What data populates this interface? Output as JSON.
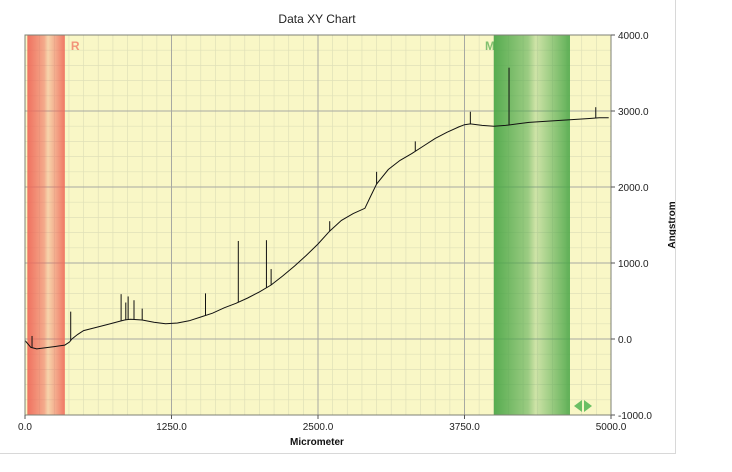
{
  "chart_data": {
    "type": "line",
    "title": "Data XY Chart",
    "xlabel": "Micrometer",
    "ylabel": "Angstrom",
    "xlim": [
      0,
      5000
    ],
    "ylim": [
      -1000,
      4000
    ],
    "x_ticks": [
      "0.0",
      "1250.0",
      "2500.0",
      "3750.0",
      "5000.0"
    ],
    "x_tick_values": [
      0,
      1250,
      2500,
      3750,
      5000
    ],
    "y_ticks": [
      "4000.0",
      "3000.0",
      "2000.0",
      "1000.0",
      "0.0",
      "-1000.0"
    ],
    "y_tick_values": [
      4000,
      3000,
      2000,
      1000,
      0,
      -1000
    ],
    "grid": true,
    "background_color": "#f9f7c6",
    "line_color": "#111111",
    "regions": [
      {
        "label": "R",
        "x_start": 20,
        "x_end": 340,
        "color": "#ef6a5a"
      },
      {
        "label": "M",
        "x_start": 4000,
        "x_end": 4650,
        "color": "#4ea84a"
      }
    ],
    "series": [
      {
        "x": [
          0,
          50,
          100,
          150,
          200,
          250,
          300,
          340,
          380,
          400,
          450,
          500,
          600,
          700,
          800,
          850,
          900,
          1000,
          1100,
          1200,
          1300,
          1400,
          1500,
          1600,
          1700,
          1800,
          1900,
          2000,
          2100,
          2200,
          2300,
          2400,
          2500,
          2600,
          2700,
          2800,
          2900,
          2950,
          3000,
          3100,
          3200,
          3300,
          3400,
          3500,
          3600,
          3700,
          3750,
          3800,
          3900,
          4000,
          4100,
          4200,
          4300,
          4400,
          4500,
          4600,
          4700,
          4800,
          4900,
          4980
        ],
        "y": [
          -20,
          -110,
          -130,
          -120,
          -110,
          -100,
          -90,
          -80,
          -40,
          0,
          60,
          110,
          150,
          190,
          230,
          250,
          260,
          250,
          220,
          200,
          210,
          240,
          290,
          340,
          410,
          470,
          540,
          620,
          710,
          830,
          960,
          1100,
          1250,
          1420,
          1560,
          1650,
          1720,
          1880,
          2040,
          2230,
          2350,
          2440,
          2540,
          2640,
          2720,
          2790,
          2820,
          2830,
          2810,
          2800,
          2810,
          2830,
          2850,
          2860,
          2870,
          2880,
          2890,
          2900,
          2910,
          2910
        ]
      }
    ],
    "spikes": [
      {
        "x": 60,
        "y": 40
      },
      {
        "x": 390,
        "y": 360
      },
      {
        "x": 820,
        "y": 590
      },
      {
        "x": 860,
        "y": 480
      },
      {
        "x": 880,
        "y": 560
      },
      {
        "x": 930,
        "y": 510
      },
      {
        "x": 1000,
        "y": 400
      },
      {
        "x": 1540,
        "y": 600
      },
      {
        "x": 1820,
        "y": 1290
      },
      {
        "x": 2060,
        "y": 1300
      },
      {
        "x": 2100,
        "y": 920
      },
      {
        "x": 2600,
        "y": 1550
      },
      {
        "x": 3000,
        "y": 2200
      },
      {
        "x": 3330,
        "y": 2600
      },
      {
        "x": 3800,
        "y": 2990
      },
      {
        "x": 4130,
        "y": 3570
      },
      {
        "x": 4870,
        "y": 3050
      }
    ],
    "legend": "none"
  }
}
